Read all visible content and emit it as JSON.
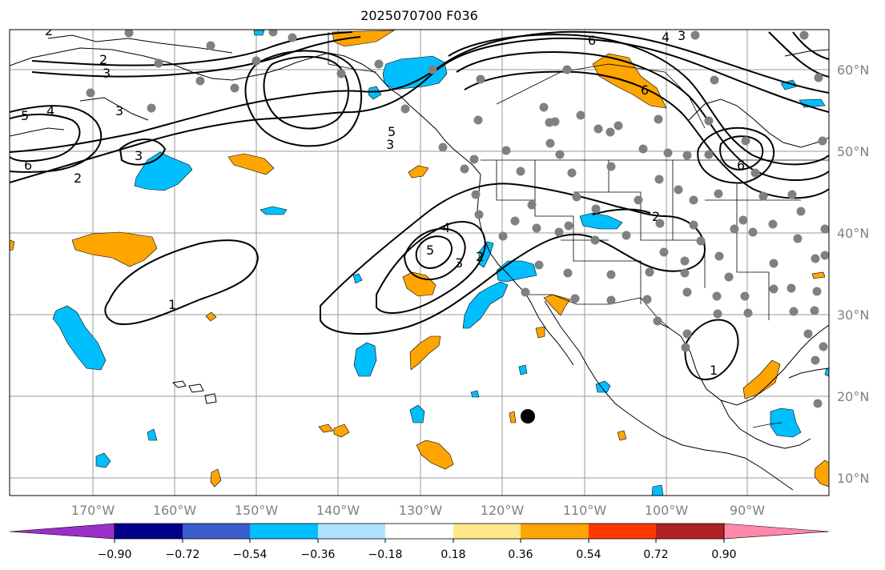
{
  "title": "2025070700 F036",
  "lat_labels": [
    "60°N",
    "50°N",
    "40°N",
    "30°N",
    "20°N",
    "10°N"
  ],
  "lon_labels": [
    "170°W",
    "160°W",
    "150°W",
    "140°W",
    "130°W",
    "120°W",
    "110°W",
    "100°W",
    "90°W"
  ],
  "colorbar": {
    "ticks": [
      "−0.90",
      "−0.72",
      "−0.54",
      "−0.36",
      "−0.18",
      "0.18",
      "0.36",
      "0.54",
      "0.72",
      "0.90"
    ],
    "colors": [
      "#9b30c9",
      "#00008b",
      "#3a5ccc",
      "#00bfff",
      "#aee3ff",
      "#ffffff",
      "#ffe88a",
      "#ffa500",
      "#ff3a00",
      "#b22222",
      "#ff88aa"
    ]
  },
  "contour_labels": [
    "2",
    "3",
    "5",
    "4",
    "6",
    "2",
    "3",
    "6",
    "4",
    "3",
    "6",
    "5",
    "3",
    "3",
    "2",
    "1",
    "4",
    "5",
    "3",
    "2",
    "2",
    "6",
    "1"
  ],
  "colors": {
    "positive_fill": "#ffa500",
    "negative_fill": "#00bfff",
    "station_dot": "#808080",
    "gridline": "#9a9a9a"
  }
}
